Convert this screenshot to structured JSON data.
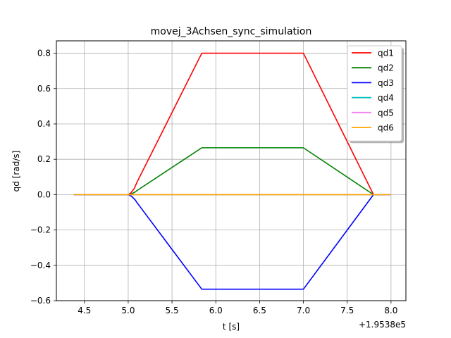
{
  "chart_data": {
    "type": "line",
    "title": "movej_3Achsen_sync_simulation",
    "xlabel": "t [s]",
    "ylabel": "qd [rad/s]",
    "x_offset_label": "+1.9538e5",
    "xlim": [
      4.18,
      8.17
    ],
    "ylim": [
      -0.6,
      0.87
    ],
    "xticks": [
      4.5,
      5.0,
      5.5,
      6.0,
      6.5,
      7.0,
      7.5,
      8.0
    ],
    "xtick_labels": [
      "4.5",
      "5.0",
      "5.5",
      "6.0",
      "6.5",
      "7.0",
      "7.5",
      "8.0"
    ],
    "yticks": [
      -0.6,
      -0.4,
      -0.2,
      0.0,
      0.2,
      0.4,
      0.6,
      0.8
    ],
    "ytick_labels": [
      "−0.6",
      "−0.4",
      "−0.2",
      "0.0",
      "0.2",
      "0.4",
      "0.6",
      "0.8"
    ],
    "grid": true,
    "legend_position": "top-right",
    "series": [
      {
        "name": "qd1",
        "color": "#ff0000",
        "points": [
          [
            4.38,
            0
          ],
          [
            5.0,
            0
          ],
          [
            5.03,
            0.01
          ],
          [
            5.07,
            0.035
          ],
          [
            5.1,
            0.07
          ],
          [
            5.84,
            0.8
          ],
          [
            7.0,
            0.8
          ],
          [
            7.8,
            0.0
          ],
          [
            8.0,
            0.0
          ]
        ]
      },
      {
        "name": "qd2",
        "color": "#008000",
        "points": [
          [
            4.38,
            0
          ],
          [
            5.0,
            0
          ],
          [
            5.04,
            0.005
          ],
          [
            5.08,
            0.015
          ],
          [
            5.1,
            0.023
          ],
          [
            5.84,
            0.265
          ],
          [
            7.0,
            0.265
          ],
          [
            7.8,
            0.0
          ],
          [
            8.0,
            0.0
          ]
        ]
      },
      {
        "name": "qd3",
        "color": "#0000ff",
        "points": [
          [
            4.38,
            0
          ],
          [
            5.0,
            0
          ],
          [
            5.04,
            -0.01
          ],
          [
            5.08,
            -0.03
          ],
          [
            5.1,
            -0.045
          ],
          [
            5.84,
            -0.535
          ],
          [
            7.0,
            -0.535
          ],
          [
            7.8,
            0.0
          ],
          [
            8.0,
            0.0
          ]
        ]
      },
      {
        "name": "qd4",
        "color": "#00bfbf",
        "points": [
          [
            4.38,
            0
          ],
          [
            8.0,
            0
          ]
        ]
      },
      {
        "name": "qd5",
        "color": "#ee82ee",
        "points": [
          [
            4.38,
            0
          ],
          [
            8.0,
            0
          ]
        ]
      },
      {
        "name": "qd6",
        "color": "#ffa500",
        "points": [
          [
            4.38,
            0
          ],
          [
            8.0,
            0
          ]
        ]
      }
    ]
  }
}
